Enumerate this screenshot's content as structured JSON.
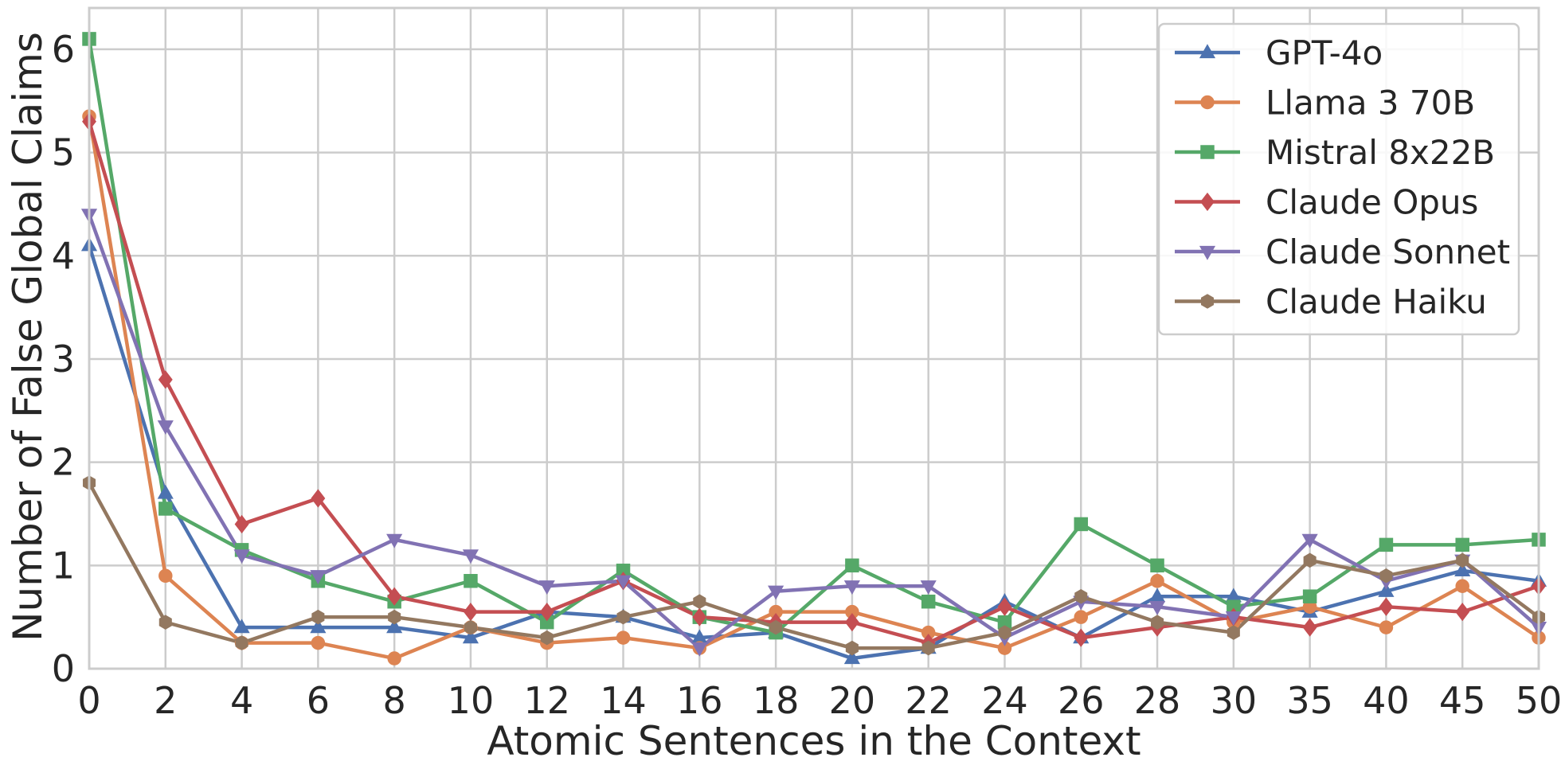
{
  "chart_data": {
    "type": "line",
    "xlabel": "Atomic Sentences in the Context",
    "ylabel": "Number of False Global Claims",
    "categories": [
      "0",
      "2",
      "4",
      "6",
      "8",
      "10",
      "12",
      "14",
      "16",
      "18",
      "20",
      "22",
      "24",
      "26",
      "28",
      "30",
      "35",
      "40",
      "45",
      "50"
    ],
    "ylim": [
      0,
      6.4
    ],
    "yticks": [
      "0",
      "1",
      "2",
      "3",
      "4",
      "5",
      "6"
    ],
    "grid": true,
    "legend_position": "top-right",
    "series": [
      {
        "name": "GPT-4o",
        "color": "#4c72b0",
        "marker": "triangle-up",
        "values": [
          4.1,
          1.7,
          0.4,
          0.4,
          0.4,
          0.3,
          0.55,
          0.5,
          0.3,
          0.35,
          0.1,
          0.2,
          0.65,
          0.3,
          0.7,
          0.7,
          0.55,
          0.75,
          0.95,
          0.85
        ]
      },
      {
        "name": "Llama 3 70B",
        "color": "#dd8452",
        "marker": "circle",
        "values": [
          5.35,
          0.9,
          0.25,
          0.25,
          0.1,
          0.4,
          0.25,
          0.3,
          0.2,
          0.55,
          0.55,
          0.35,
          0.2,
          0.5,
          0.85,
          0.45,
          0.6,
          0.4,
          0.8,
          0.3
        ]
      },
      {
        "name": "Mistral 8x22B",
        "color": "#55a868",
        "marker": "square",
        "values": [
          6.1,
          1.55,
          1.15,
          0.85,
          0.65,
          0.85,
          0.45,
          0.95,
          0.5,
          0.35,
          1.0,
          0.65,
          0.45,
          1.4,
          1.0,
          0.6,
          0.7,
          1.2,
          1.2,
          1.25
        ]
      },
      {
        "name": "Claude Opus",
        "color": "#c44e52",
        "marker": "diamond",
        "values": [
          5.3,
          2.8,
          1.4,
          1.65,
          0.7,
          0.55,
          0.55,
          0.85,
          0.5,
          0.45,
          0.45,
          0.25,
          0.6,
          0.3,
          0.4,
          0.5,
          0.4,
          0.6,
          0.55,
          0.8
        ]
      },
      {
        "name": "Claude Sonnet",
        "color": "#8172b3",
        "marker": "triangle-down",
        "values": [
          4.4,
          2.35,
          1.1,
          0.9,
          1.25,
          1.1,
          0.8,
          0.85,
          0.2,
          0.75,
          0.8,
          0.8,
          0.3,
          0.65,
          0.6,
          0.5,
          1.25,
          0.85,
          1.05,
          0.4
        ]
      },
      {
        "name": "Claude Haiku",
        "color": "#937860",
        "marker": "hexagon",
        "values": [
          1.8,
          0.45,
          0.25,
          0.5,
          0.5,
          0.4,
          0.3,
          0.5,
          0.65,
          0.4,
          0.2,
          0.2,
          0.35,
          0.7,
          0.45,
          0.35,
          1.05,
          0.9,
          1.05,
          0.5
        ]
      }
    ]
  }
}
